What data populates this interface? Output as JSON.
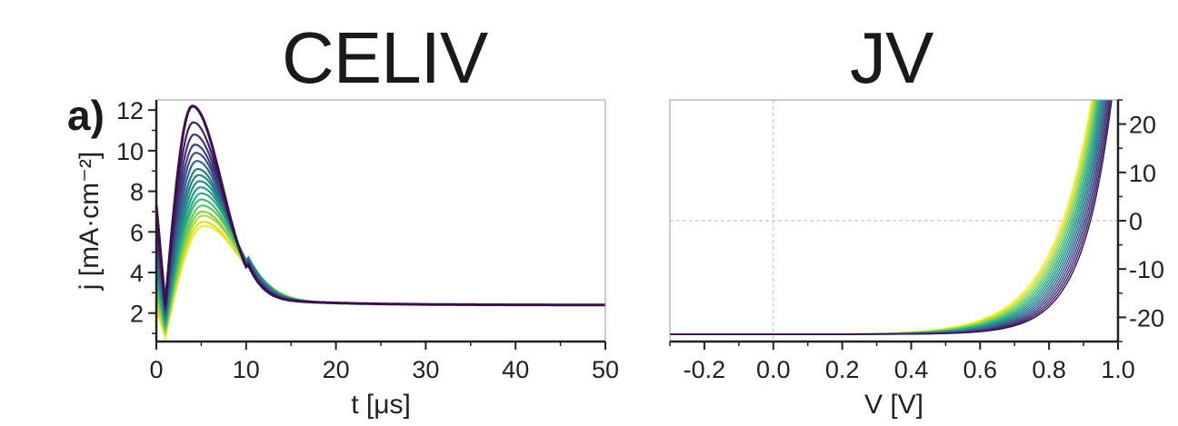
{
  "panel_label": "a)",
  "chart_data": [
    {
      "type": "line",
      "title": "CELIV",
      "xlabel": "t [μs]",
      "ylabel": "j [mA·cm⁻²]",
      "xlim": [
        0,
        50
      ],
      "ylim": [
        0.6,
        12.5
      ],
      "xticks": [
        0,
        10,
        20,
        30,
        40,
        50
      ],
      "xtick_labels": [
        "0",
        "10",
        "20",
        "30",
        "40",
        "50"
      ],
      "yticks": [
        2,
        4,
        6,
        8,
        10,
        12
      ],
      "ytick_labels": [
        "2",
        "4",
        "6",
        "8",
        "10",
        "12"
      ],
      "grid": false,
      "series_count": 17,
      "baseline": 2.4,
      "start_values": [
        7.3,
        6.8,
        6.4,
        6.0,
        5.7,
        5.4,
        5.1,
        4.8,
        4.5,
        4.2,
        3.9,
        3.6,
        3.3,
        3.0,
        2.7,
        2.4,
        2.2
      ],
      "dip_values": [
        2.4,
        2.3,
        2.2,
        2.1,
        2.0,
        1.9,
        1.8,
        1.7,
        1.6,
        1.5,
        1.4,
        1.3,
        1.2,
        1.1,
        1.0,
        0.9,
        0.8
      ],
      "peak_values": [
        12.2,
        11.4,
        10.8,
        10.3,
        9.9,
        9.5,
        9.1,
        8.8,
        8.5,
        8.2,
        7.9,
        7.6,
        7.3,
        7.0,
        6.8,
        6.5,
        6.3
      ],
      "peak_times": [
        4.0,
        4.1,
        4.2,
        4.3,
        4.4,
        4.5,
        4.6,
        4.7,
        4.8,
        4.9,
        5.0,
        5.0,
        5.1,
        5.1,
        5.2,
        5.2,
        5.3
      ],
      "colormap": [
        "#3b0f4f",
        "#46337e",
        "#365c8d",
        "#277f8e",
        "#1fa187",
        "#4ac16d",
        "#a0da39",
        "#fde725"
      ]
    },
    {
      "type": "line",
      "title": "JV",
      "xlabel": "V [V]",
      "ylabel": "",
      "xlim": [
        -0.3,
        1.0
      ],
      "ylim": [
        -25,
        25
      ],
      "xticks": [
        -0.2,
        0.0,
        0.2,
        0.4,
        0.6,
        0.8,
        1.0
      ],
      "xtick_labels": [
        "-0.2",
        "0.0",
        "0.2",
        "0.4",
        "0.6",
        "0.8",
        "1.0"
      ],
      "yticks": [
        20,
        10,
        0,
        -10,
        -20
      ],
      "ytick_labels": [
        "20",
        "10",
        "0",
        "-10",
        "-20"
      ],
      "y_axis_side": "right",
      "zero_lines": true,
      "series_count": 17,
      "jsc": -23.5,
      "voc_range": [
        0.84,
        0.92
      ],
      "colormap": [
        "#3b0f4f",
        "#46337e",
        "#365c8d",
        "#277f8e",
        "#1fa187",
        "#4ac16d",
        "#a0da39",
        "#fde725"
      ]
    }
  ]
}
